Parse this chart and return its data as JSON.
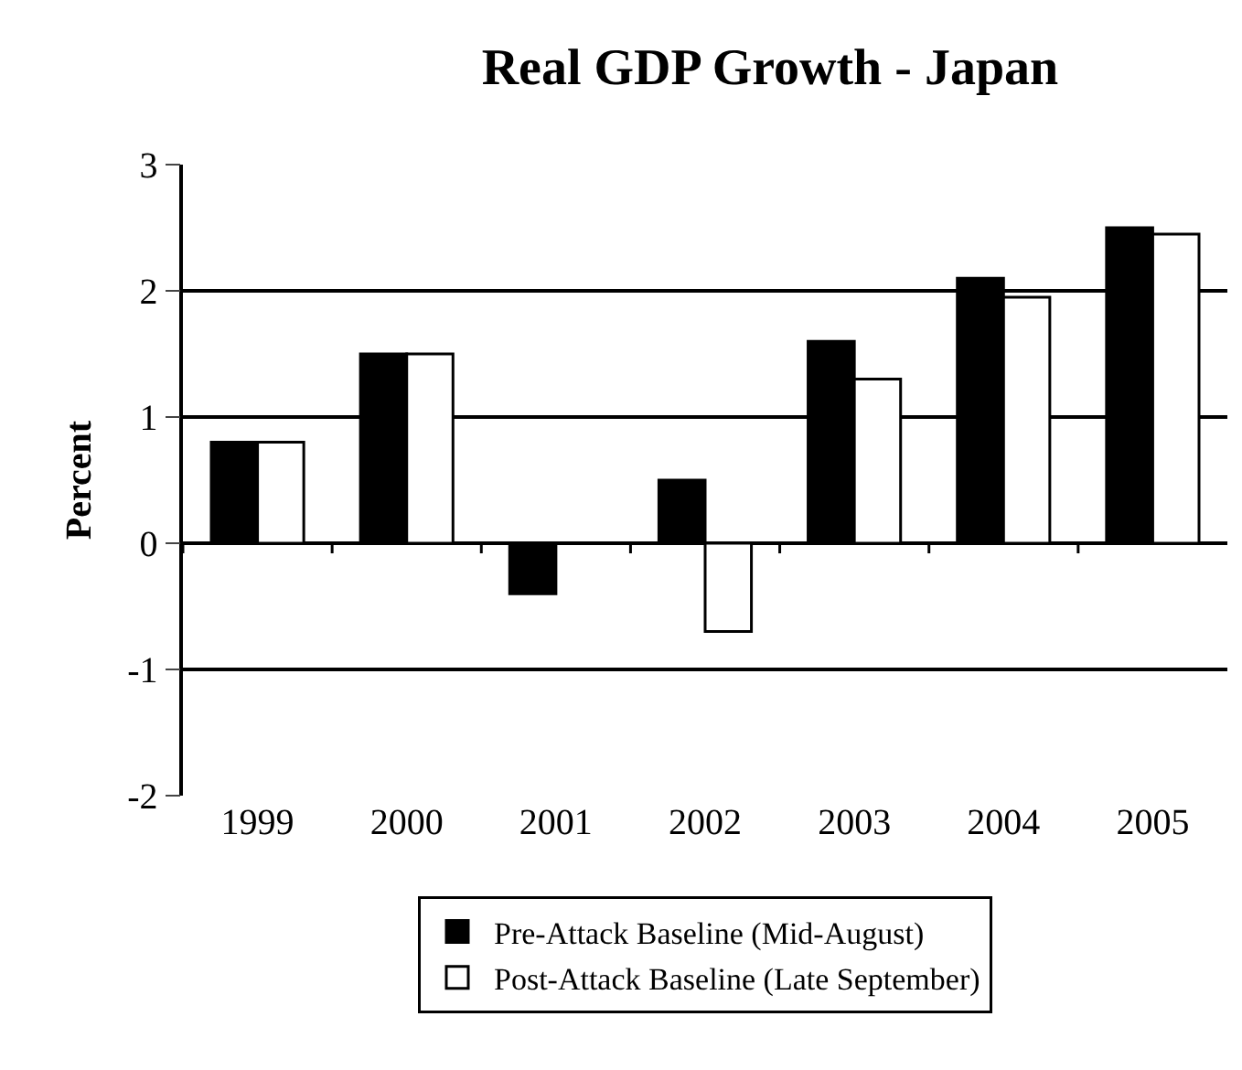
{
  "chart_data": {
    "type": "bar",
    "title": "Real GDP Growth - Japan",
    "ylabel": "Percent",
    "categories": [
      "1999",
      "2000",
      "2001",
      "2002",
      "2003",
      "2004",
      "2005"
    ],
    "series": [
      {
        "name": "Pre-Attack Baseline (Mid-August)",
        "color": "#000000",
        "values": [
          0.8,
          1.5,
          -0.4,
          0.5,
          1.6,
          2.1,
          2.5
        ]
      },
      {
        "name": "Post-Attack Baseline (Late September)",
        "color": "#ffffff",
        "values": [
          0.8,
          1.5,
          null,
          -0.7,
          1.3,
          1.95,
          2.45
        ]
      }
    ],
    "ylim": [
      -2,
      3
    ],
    "yticks": [
      -2,
      -1,
      0,
      1,
      2,
      3
    ],
    "grid": "y",
    "legend": "bottom"
  }
}
